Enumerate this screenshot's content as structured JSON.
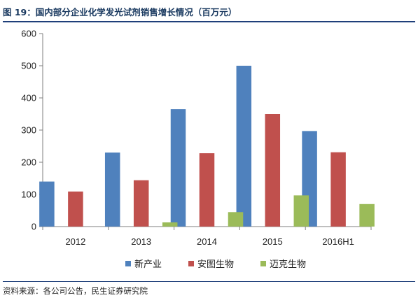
{
  "header": {
    "title": "图 19：国内部分企业化学发光试剂销售增长情况（百万元）"
  },
  "footer": {
    "source": "资料来源：各公司公告，民生证券研究院"
  },
  "chart_data": {
    "type": "bar",
    "title": "图 19：国内部分企业化学发光试剂销售增长情况（百万元）",
    "xlabel": "",
    "ylabel": "",
    "categories": [
      "2012",
      "2013",
      "2014",
      "2015",
      "2016H1"
    ],
    "ylim": [
      0,
      600
    ],
    "yticks": [
      "0",
      "100",
      "200",
      "300",
      "400",
      "500",
      "600"
    ],
    "grid": false,
    "legend_position": "bottom",
    "series": [
      {
        "name": "新产业",
        "color": "#4f81bd",
        "values": [
          140,
          230,
          365,
          500,
          297
        ]
      },
      {
        "name": "安图生物",
        "color": "#c0504d",
        "values": [
          109,
          144,
          228,
          350,
          231
        ]
      },
      {
        "name": "迈克生物",
        "color": "#9bbb59",
        "values": [
          null,
          13,
          45,
          97,
          70
        ]
      }
    ]
  }
}
